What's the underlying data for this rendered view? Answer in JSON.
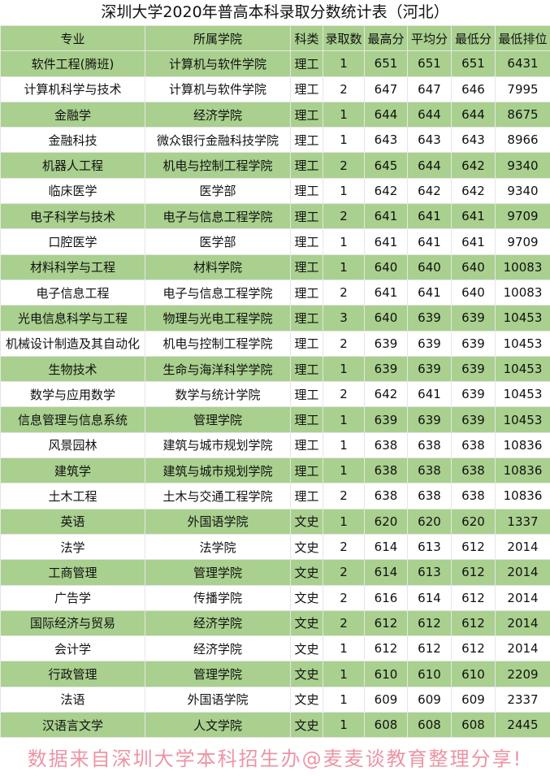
{
  "title": "深圳大学2020年普高本科录取分数统计表（河北）",
  "headers": [
    "专业",
    "所属学院",
    "科类",
    "录取数",
    "最高分",
    "平均分",
    "最低分",
    "最低排位"
  ],
  "rows": [
    [
      "软件工程(腾班)",
      "计算机与软件学院",
      "理工",
      "1",
      "651",
      "651",
      "651",
      "6431"
    ],
    [
      "计算机科学与技术",
      "计算机与软件学院",
      "理工",
      "2",
      "647",
      "647",
      "646",
      "7995"
    ],
    [
      "金融学",
      "经济学院",
      "理工",
      "1",
      "644",
      "644",
      "644",
      "8675"
    ],
    [
      "金融科技",
      "微众银行金融科技学院",
      "理工",
      "1",
      "643",
      "643",
      "643",
      "8966"
    ],
    [
      "机器人工程",
      "机电与控制工程学院",
      "理工",
      "2",
      "645",
      "644",
      "642",
      "9340"
    ],
    [
      "临床医学",
      "医学部",
      "理工",
      "1",
      "642",
      "642",
      "642",
      "9340"
    ],
    [
      "电子科学与技术",
      "电子与信息工程学院",
      "理工",
      "2",
      "641",
      "641",
      "641",
      "9709"
    ],
    [
      "口腔医学",
      "医学部",
      "理工",
      "1",
      "641",
      "641",
      "641",
      "9709"
    ],
    [
      "材料科学与工程",
      "材料学院",
      "理工",
      "1",
      "640",
      "640",
      "640",
      "10083"
    ],
    [
      "电子信息工程",
      "电子与信息工程学院",
      "理工",
      "2",
      "641",
      "641",
      "640",
      "10083"
    ],
    [
      "光电信息科学与工程",
      "物理与光电工程学院",
      "理工",
      "3",
      "640",
      "639",
      "639",
      "10453"
    ],
    [
      "机械设计制造及其自动化",
      "机电与控制工程学院",
      "理工",
      "2",
      "639",
      "639",
      "639",
      "10453"
    ],
    [
      "生物技术",
      "生命与海洋科学学院",
      "理工",
      "1",
      "639",
      "639",
      "639",
      "10453"
    ],
    [
      "数学与应用数学",
      "数学与统计学院",
      "理工",
      "2",
      "642",
      "641",
      "639",
      "10453"
    ],
    [
      "信息管理与信息系统",
      "管理学院",
      "理工",
      "1",
      "639",
      "639",
      "639",
      "10453"
    ],
    [
      "风景园林",
      "建筑与城市规划学院",
      "理工",
      "1",
      "638",
      "638",
      "638",
      "10836"
    ],
    [
      "建筑学",
      "建筑与城市规划学院",
      "理工",
      "1",
      "638",
      "638",
      "638",
      "10836"
    ],
    [
      "土木工程",
      "土木与交通工程学院",
      "理工",
      "2",
      "638",
      "638",
      "638",
      "10836"
    ],
    [
      "英语",
      "外国语学院",
      "文史",
      "1",
      "620",
      "620",
      "620",
      "1337"
    ],
    [
      "法学",
      "法学院",
      "文史",
      "2",
      "614",
      "613",
      "612",
      "2014"
    ],
    [
      "工商管理",
      "管理学院",
      "文史",
      "2",
      "614",
      "613",
      "612",
      "2014"
    ],
    [
      "广告学",
      "传播学院",
      "文史",
      "2",
      "616",
      "614",
      "612",
      "2014"
    ],
    [
      "国际经济与贸易",
      "经济学院",
      "文史",
      "2",
      "612",
      "612",
      "612",
      "2014"
    ],
    [
      "会计学",
      "经济学院",
      "文史",
      "1",
      "612",
      "612",
      "612",
      "2014"
    ],
    [
      "行政管理",
      "管理学院",
      "文史",
      "1",
      "610",
      "610",
      "610",
      "2209"
    ],
    [
      "法语",
      "外国语学院",
      "文史",
      "1",
      "609",
      "609",
      "609",
      "2337"
    ],
    [
      "汉语言文学",
      "人文学院",
      "文史",
      "1",
      "608",
      "608",
      "608",
      "2445"
    ]
  ],
  "watermark": "数据来自深圳大学本科招生办@麦麦谈教育整理分享!",
  "colors": {
    "band": "#a9d08e"
  }
}
